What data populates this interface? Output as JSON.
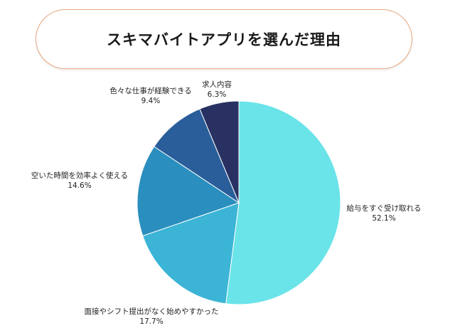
{
  "title": "スキマバイトアプリを選んだ理由",
  "colors": {
    "title_border": "#e7a77c",
    "slices": [
      "#6ae4e8",
      "#3bb4d6",
      "#2a8ebe",
      "#2a5e9a",
      "#283162"
    ]
  },
  "chart_data": {
    "type": "pie",
    "title": "スキマバイトアプリを選んだ理由",
    "slices": [
      {
        "label": "給与をすぐ受け取れる",
        "value": 52.1,
        "value_label": "52.1%"
      },
      {
        "label": "面接やシフト提出がなく始めやすかった",
        "value": 17.7,
        "value_label": "17.7%"
      },
      {
        "label": "空いた時間を効率よく使える",
        "value": 14.6,
        "value_label": "14.6%"
      },
      {
        "label": "色々な仕事が経験できる",
        "value": 9.4,
        "value_label": "9.4%"
      },
      {
        "label": "求人内容",
        "value": 6.3,
        "value_label": "6.3%"
      }
    ],
    "start": "12 o'clock",
    "direction": "clockwise"
  }
}
